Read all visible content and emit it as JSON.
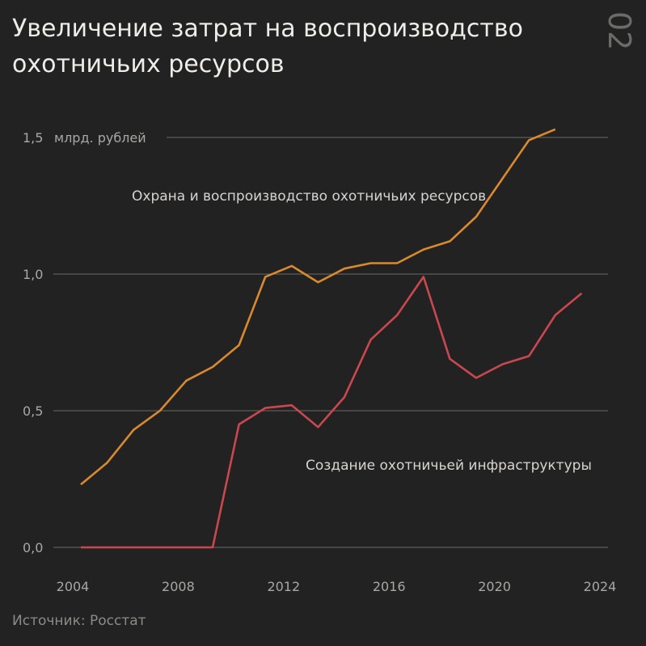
{
  "header": {
    "title": "Увеличение затрат на воспроизводство охотничьих ресурсов",
    "page_number": "02"
  },
  "footer": {
    "source": "Источник: Росстат"
  },
  "chart_data": {
    "type": "line",
    "ylabel_unit": "млрд. рублей",
    "ylim": [
      0,
      1.5
    ],
    "xlim": [
      2004,
      2024
    ],
    "x_ticks": [
      "2004",
      "2008",
      "2012",
      "2016",
      "2020",
      "2024"
    ],
    "y_ticks": [
      "0,0",
      "0,5",
      "1,0",
      "1,5"
    ],
    "grid": true,
    "x": [
      2004,
      2005,
      2006,
      2007,
      2008,
      2009,
      2010,
      2011,
      2012,
      2013,
      2014,
      2015,
      2016,
      2017,
      2018,
      2019,
      2020,
      2021,
      2022,
      2023
    ],
    "series": [
      {
        "name": "Охрана и воспроизводство охотничьих ресурсов",
        "color": "#d98a2e",
        "values": [
          0.23,
          0.31,
          0.43,
          0.5,
          0.61,
          0.66,
          0.74,
          0.99,
          1.03,
          0.97,
          1.02,
          1.04,
          1.04,
          1.09,
          1.12,
          1.21,
          1.35,
          1.49,
          1.53,
          null
        ]
      },
      {
        "name": "Создание охотничьей инфраструктуры",
        "color": "#c9484f",
        "values": [
          0.0,
          0.0,
          0.0,
          0.0,
          0.0,
          0.0,
          0.45,
          0.51,
          0.52,
          0.44,
          0.55,
          0.76,
          0.85,
          0.99,
          0.69,
          0.62,
          0.67,
          0.7,
          0.85,
          0.93
        ]
      }
    ]
  }
}
